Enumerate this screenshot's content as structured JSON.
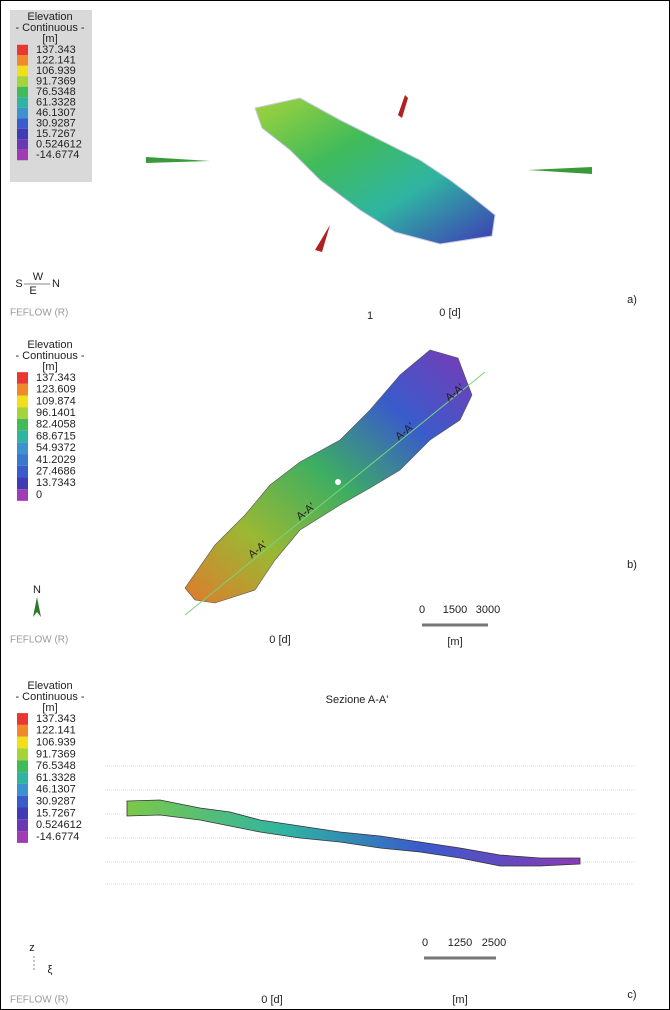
{
  "panels": [
    {
      "letter": "a)",
      "footer": "FEFLOW (R)",
      "time": "0 [d]",
      "marker": "1",
      "compass": [
        "S",
        "W",
        "E",
        "N"
      ],
      "legend": {
        "title": "Elevation",
        "subtitle": "- Continuous -",
        "unit": "[m]",
        "entries": [
          {
            "label": "137.343",
            "color": "#e8382f"
          },
          {
            "label": "122.141",
            "color": "#f0892a"
          },
          {
            "label": "106.939",
            "color": "#f1df1c"
          },
          {
            "label": "91.7369",
            "color": "#a4d43a"
          },
          {
            "label": "76.5348",
            "color": "#41bb5a"
          },
          {
            "label": "61.3328",
            "color": "#2fb4a2"
          },
          {
            "label": "46.1307",
            "color": "#3a92cf"
          },
          {
            "label": "30.9287",
            "color": "#3a5bcb"
          },
          {
            "label": "15.7267",
            "color": "#3f3ab6"
          },
          {
            "label": "0.524612",
            "color": "#6c37b3"
          },
          {
            "label": "-14.6774",
            "color": "#a13bb3"
          }
        ]
      }
    },
    {
      "letter": "b)",
      "footer": "FEFLOW (R)",
      "time": "0 [d]",
      "compass": [
        "N"
      ],
      "section_label": "A-A'",
      "scale": {
        "ticks": [
          "0",
          "1500",
          "3000"
        ],
        "unit": "[m]"
      },
      "legend": {
        "title": "Elevation",
        "subtitle": "- Continuous -",
        "unit": "[m]",
        "entries": [
          {
            "label": "137.343",
            "color": "#e8382f"
          },
          {
            "label": "123.609",
            "color": "#f0892a"
          },
          {
            "label": "109.874",
            "color": "#f1df1c"
          },
          {
            "label": "96.1401",
            "color": "#a4d43a"
          },
          {
            "label": "82.4058",
            "color": "#41bb5a"
          },
          {
            "label": "68.6715",
            "color": "#2fb4a2"
          },
          {
            "label": "54.9372",
            "color": "#3a92cf"
          },
          {
            "label": "41.2029",
            "color": "#3a78cf"
          },
          {
            "label": "27.4686",
            "color": "#3a5bcb"
          },
          {
            "label": "13.7343",
            "color": "#3f3ab6"
          },
          {
            "label": "0",
            "color": "#a13bb3"
          }
        ]
      }
    },
    {
      "letter": "c)",
      "footer": "FEFLOW (R)",
      "time": "0 [d]",
      "title": "Sezione A-A'",
      "axes": [
        "z",
        "ξ"
      ],
      "scale": {
        "ticks": [
          "0",
          "1250",
          "2500"
        ],
        "unit": "[m]"
      },
      "legend": {
        "title": "Elevation",
        "subtitle": "- Continuous -",
        "unit": "[m]",
        "entries": [
          {
            "label": "137.343",
            "color": "#e8382f"
          },
          {
            "label": "122.141",
            "color": "#f0892a"
          },
          {
            "label": "106.939",
            "color": "#f1df1c"
          },
          {
            "label": "91.7369",
            "color": "#a4d43a"
          },
          {
            "label": "76.5348",
            "color": "#41bb5a"
          },
          {
            "label": "61.3328",
            "color": "#2fb4a2"
          },
          {
            "label": "46.1307",
            "color": "#3a92cf"
          },
          {
            "label": "30.9287",
            "color": "#3a5bcb"
          },
          {
            "label": "15.7267",
            "color": "#3f3ab6"
          },
          {
            "label": "0.524612",
            "color": "#6c37b3"
          },
          {
            "label": "-14.6774",
            "color": "#a13bb3"
          }
        ]
      }
    }
  ]
}
